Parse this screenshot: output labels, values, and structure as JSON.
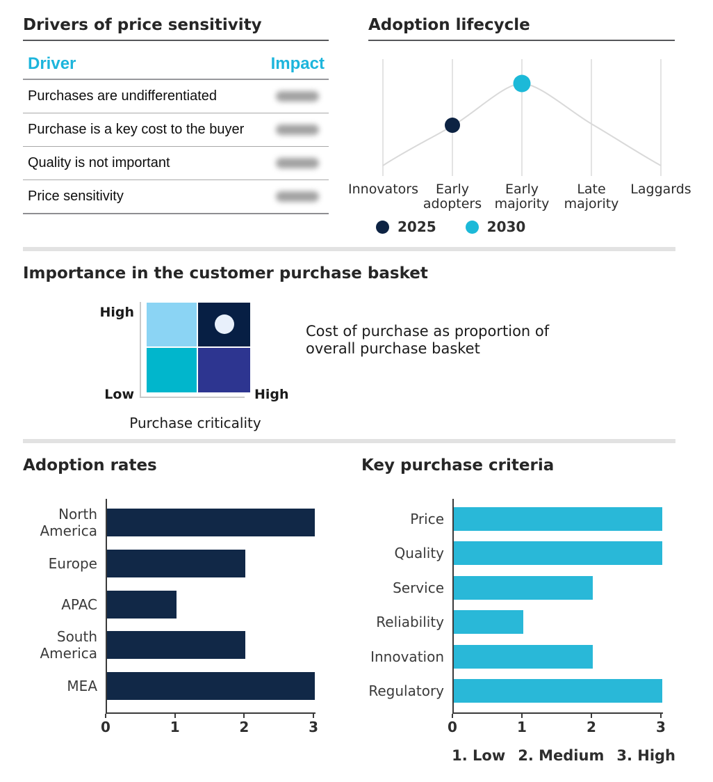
{
  "colors": {
    "accent_cyan": "#1db5dc",
    "navy": "#112847",
    "divider": "#e2e2e2"
  },
  "drivers_table": {
    "title": "Drivers of price sensitivity",
    "columns": [
      "Driver",
      "Impact"
    ],
    "rows": [
      {
        "driver": "Purchases are undifferentiated",
        "impact_redacted": true
      },
      {
        "driver": "Purchase is a key cost to the buyer",
        "impact_redacted": true
      },
      {
        "driver": "Quality is not important",
        "impact_redacted": true
      },
      {
        "driver": "Price sensitivity",
        "impact_redacted": true
      }
    ]
  },
  "chart_data": [
    {
      "id": "adoption-lifecycle",
      "type": "line",
      "title": "Adoption lifecycle",
      "categories": [
        "Innovators",
        "Early adopters",
        "Early majority",
        "Late majority",
        "Laggards"
      ],
      "curve": {
        "color": "#d9d9d9",
        "shape": "bell",
        "values": [
          0.09,
          0.43,
          0.85,
          0.44,
          0.09
        ]
      },
      "series": [
        {
          "name": "2025",
          "color": "#0d2343",
          "marker_category": "Early adopters",
          "value": 0.43
        },
        {
          "name": "2030",
          "color": "#1cb9d8",
          "marker_category": "Early majority",
          "value": 0.85
        }
      ],
      "grid": "vertical",
      "legend_position": "bottom"
    },
    {
      "id": "purchase-basket-matrix",
      "type": "heatmap",
      "title": "Importance in the customer purchase basket",
      "x_axis_label": "Purchase criticality",
      "x_axis_end_label": "High",
      "y_axis_top_label": "High",
      "y_axis_bottom_label": "Low",
      "quadrants": [
        {
          "pos": "top-left",
          "color": "#8bd4f4",
          "marker": false
        },
        {
          "pos": "top-right",
          "color": "#071f44",
          "marker": true
        },
        {
          "pos": "bottom-left",
          "color": "#01b6cc",
          "marker": false
        },
        {
          "pos": "bottom-right",
          "color": "#2d3590",
          "marker": false
        }
      ],
      "marker_color": "#e8f0fb",
      "annotation": "Cost of purchase as proportion of overall purchase basket"
    },
    {
      "id": "adoption-rates",
      "type": "bar",
      "orientation": "horizontal",
      "title": "Adoption rates",
      "categories": [
        "North America",
        "Europe",
        "APAC",
        "South America",
        "MEA"
      ],
      "values": [
        3,
        2,
        1,
        2,
        3
      ],
      "xlim": [
        0,
        3
      ],
      "xticks": [
        0,
        1,
        2,
        3
      ],
      "bar_color": "#112847"
    },
    {
      "id": "key-purchase-criteria",
      "type": "bar",
      "orientation": "horizontal",
      "title": "Key purchase criteria",
      "categories": [
        "Price",
        "Quality",
        "Service",
        "Reliability",
        "Innovation",
        "Regulatory"
      ],
      "values": [
        3,
        3,
        2,
        1,
        2,
        3
      ],
      "xlim": [
        0,
        3
      ],
      "xticks": [
        0,
        1,
        2,
        3
      ],
      "bar_color": "#29b8d8",
      "footnote": [
        "1. Low",
        "2. Medium",
        "3. High"
      ]
    }
  ]
}
